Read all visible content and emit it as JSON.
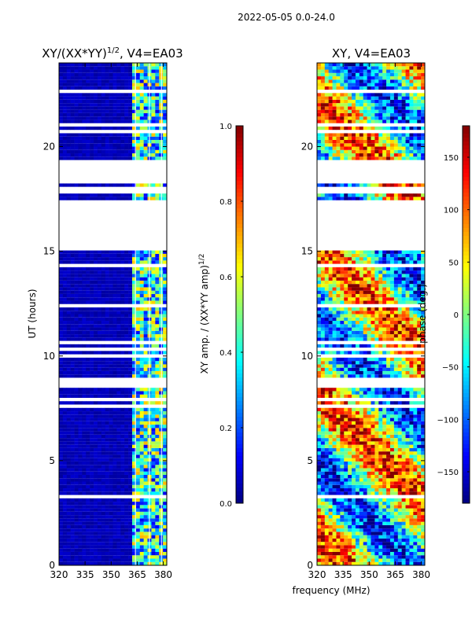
{
  "chart_data": {
    "type": "heatmap",
    "suptitle": "2022-05-05 0.0-24.0",
    "xlabel": "frequency (MHz)",
    "ylabel": "UT (hours)",
    "x_ticks": [
      "320",
      "335",
      "350",
      "365",
      "380"
    ],
    "x_range": [
      320,
      382
    ],
    "y_ticks": [
      "0",
      "5",
      "10",
      "15",
      "20"
    ],
    "y_range": [
      0,
      24
    ],
    "panels": [
      {
        "title_prefix": "XY/(XX*YY)",
        "title_exp": "1/2",
        "title_suffix": ", V4=EA03",
        "colorbar": {
          "label_prefix": "XY amp. / (XX*YY amp)",
          "label_exp": "1/2",
          "range": [
            0.0,
            1.0
          ],
          "ticks": [
            "0.0",
            "0.2",
            "0.4",
            "0.6",
            "0.8",
            "1.0"
          ]
        }
      },
      {
        "title": "XY, V4=EA03",
        "colorbar": {
          "label": "phase (deg.)",
          "range": [
            -180,
            180
          ],
          "ticks": [
            "−150",
            "−100",
            "−50",
            "0",
            "50",
            "100",
            "150"
          ]
        }
      }
    ],
    "data_gaps_hours": [
      [
        8.5,
        9.0
      ],
      [
        15.0,
        17.5
      ],
      [
        17.8,
        18.1
      ],
      [
        18.3,
        19.3
      ]
    ]
  }
}
